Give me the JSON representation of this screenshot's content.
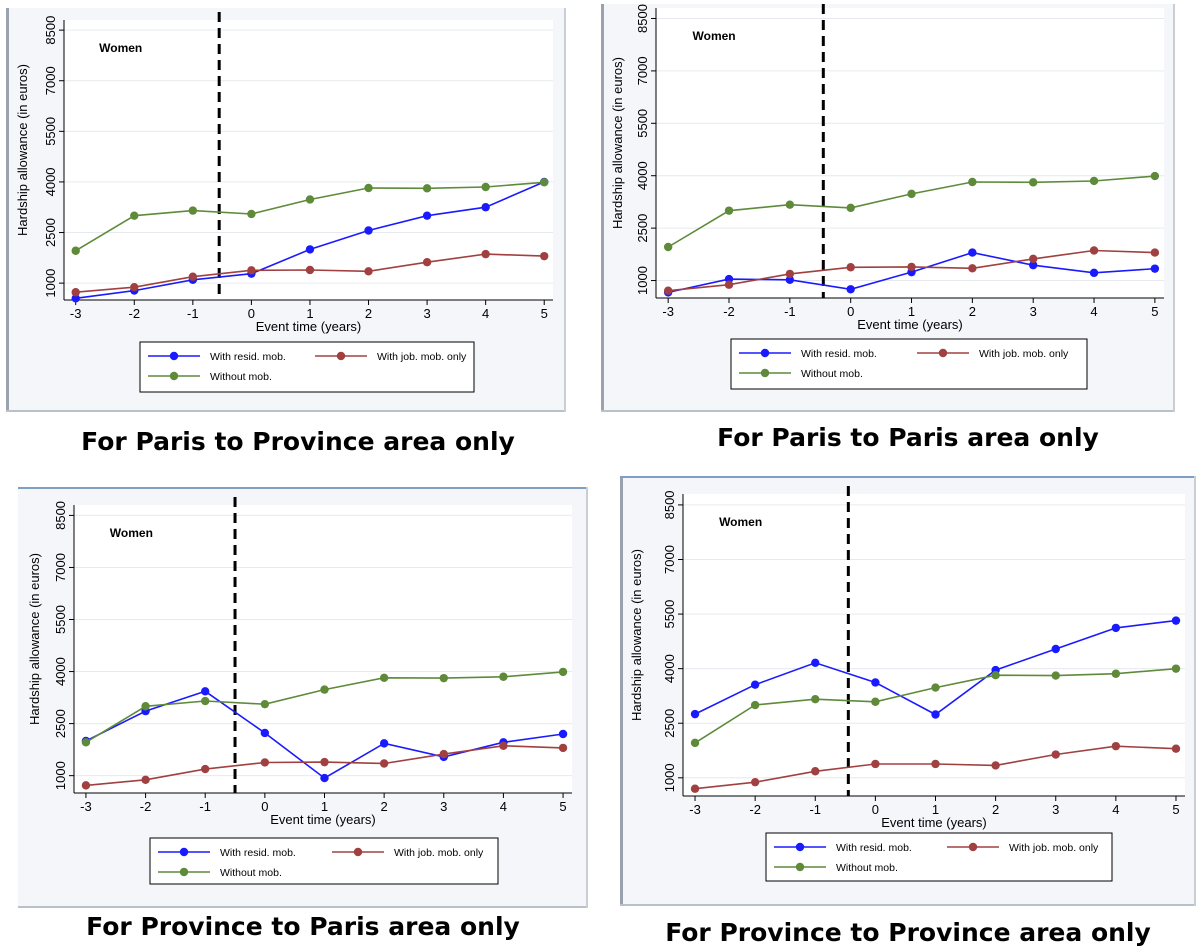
{
  "chart_data": [
    {
      "type": "line",
      "title": "Women",
      "caption": "For Paris to Province area only",
      "xlabel": "Event time (years)",
      "ylabel": "Hardship allowance (in euros)",
      "x": [
        -3,
        -2,
        -1,
        0,
        1,
        2,
        3,
        4,
        5
      ],
      "x_ticks": [
        "-3",
        "-2",
        "-1",
        "0",
        "1",
        "2",
        "3",
        "4",
        "5"
      ],
      "y_ticks": [
        "1000",
        "2500",
        "4000",
        "5500",
        "7000",
        "8500"
      ],
      "ylim": [
        500,
        8800
      ],
      "event_line_x": -0.55,
      "series": [
        {
          "name": "With resid. mob.",
          "color": "#1a1aff",
          "values": [
            550,
            780,
            1100,
            1280,
            2000,
            2560,
            3000,
            3250,
            4000
          ]
        },
        {
          "name": "With job. mob. only",
          "color": "#a04040",
          "values": [
            730,
            880,
            1190,
            1380,
            1390,
            1350,
            1620,
            1860,
            1800
          ]
        },
        {
          "name": "Without mob.",
          "color": "#5e8a3a",
          "values": [
            1960,
            3000,
            3150,
            3050,
            3480,
            3820,
            3810,
            3850,
            3990
          ]
        }
      ]
    },
    {
      "type": "line",
      "title": "Women",
      "caption": "For Paris to Paris area only",
      "xlabel": "Event time (years)",
      "ylabel": "Hardship allowance (in euros)",
      "x": [
        -3,
        -2,
        -1,
        0,
        1,
        2,
        3,
        4,
        5
      ],
      "x_ticks": [
        "-3",
        "-2",
        "-1",
        "0",
        "1",
        "2",
        "3",
        "4",
        "5"
      ],
      "y_ticks": [
        "1000",
        "2500",
        "4000",
        "5500",
        "7000",
        "8500"
      ],
      "ylim": [
        500,
        8800
      ],
      "event_line_x": -0.45,
      "series": [
        {
          "name": "With resid. mob.",
          "color": "#1a1aff",
          "values": [
            660,
            1040,
            1020,
            750,
            1240,
            1800,
            1440,
            1220,
            1340
          ]
        },
        {
          "name": "With job. mob. only",
          "color": "#a04040",
          "values": [
            710,
            880,
            1190,
            1380,
            1390,
            1350,
            1620,
            1860,
            1800
          ]
        },
        {
          "name": "Without mob.",
          "color": "#5e8a3a",
          "values": [
            1960,
            3000,
            3170,
            3080,
            3480,
            3820,
            3810,
            3850,
            3990
          ]
        }
      ]
    },
    {
      "type": "line",
      "title": "Women",
      "caption": "For Province to Paris area only",
      "xlabel": "Event time (years)",
      "ylabel": "Hardship allowance (in euros)",
      "x": [
        -3,
        -2,
        -1,
        0,
        1,
        2,
        3,
        4,
        5
      ],
      "x_ticks": [
        "-3",
        "-2",
        "-1",
        "0",
        "1",
        "2",
        "3",
        "4",
        "5"
      ],
      "y_ticks": [
        "1000",
        "2500",
        "4000",
        "5500",
        "7000",
        "8500"
      ],
      "ylim": [
        500,
        8800
      ],
      "event_line_x": -0.5,
      "series": [
        {
          "name": "With resid. mob.",
          "color": "#1a1aff",
          "values": [
            2000,
            2860,
            3430,
            2230,
            930,
            1930,
            1540,
            1960,
            2200
          ]
        },
        {
          "name": "With job. mob. only",
          "color": "#a04040",
          "values": [
            720,
            880,
            1190,
            1380,
            1390,
            1350,
            1620,
            1860,
            1800
          ]
        },
        {
          "name": "Without mob.",
          "color": "#5e8a3a",
          "values": [
            1960,
            3000,
            3150,
            3060,
            3480,
            3820,
            3810,
            3850,
            3990
          ]
        }
      ]
    },
    {
      "type": "line",
      "title": "Women",
      "caption": "For Province to Province area only",
      "xlabel": "Event time (years)",
      "ylabel": "Hardship allowance (in euros)",
      "x": [
        -3,
        -2,
        -1,
        0,
        1,
        2,
        3,
        4,
        5
      ],
      "x_ticks": [
        "-3",
        "-2",
        "-1",
        "0",
        "1",
        "2",
        "3",
        "4",
        "5"
      ],
      "y_ticks": [
        "1000",
        "2500",
        "4000",
        "5500",
        "7000",
        "8500"
      ],
      "ylim": [
        500,
        8800
      ],
      "event_line_x": -0.45,
      "series": [
        {
          "name": "With resid. mob.",
          "color": "#1a1aff",
          "values": [
            2750,
            3560,
            4160,
            3620,
            2740,
            3960,
            4540,
            5120,
            5320
          ]
        },
        {
          "name": "With job. mob. only",
          "color": "#a04040",
          "values": [
            700,
            880,
            1180,
            1380,
            1380,
            1340,
            1640,
            1870,
            1800
          ]
        },
        {
          "name": "Without mob.",
          "color": "#5e8a3a",
          "values": [
            1960,
            3000,
            3160,
            3090,
            3480,
            3820,
            3810,
            3860,
            4000
          ]
        }
      ]
    }
  ]
}
